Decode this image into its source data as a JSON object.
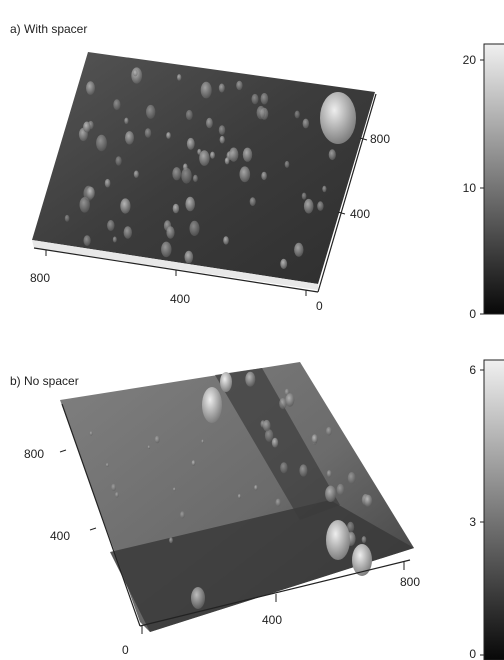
{
  "panels": [
    {
      "label": "a) With spacer",
      "axis_a_ticks": [
        "800",
        "400"
      ],
      "axis_b_ticks": [
        "800",
        "400",
        "0"
      ],
      "scale_ticks": [
        "20",
        "10",
        "0"
      ]
    },
    {
      "label": "b) No spacer",
      "axis_a_ticks": [
        "800",
        "400"
      ],
      "axis_b_ticks": [
        "0",
        "400",
        "800"
      ],
      "scale_ticks": [
        "6",
        "3",
        "0"
      ]
    }
  ],
  "colors": {
    "surface_dark": "#2f2f2f",
    "surface_mid": "#6a6a6a",
    "surface_light": "#d9d9d9",
    "scale_top": "#f2f2f2",
    "scale_bottom": "#0a0a0a"
  }
}
